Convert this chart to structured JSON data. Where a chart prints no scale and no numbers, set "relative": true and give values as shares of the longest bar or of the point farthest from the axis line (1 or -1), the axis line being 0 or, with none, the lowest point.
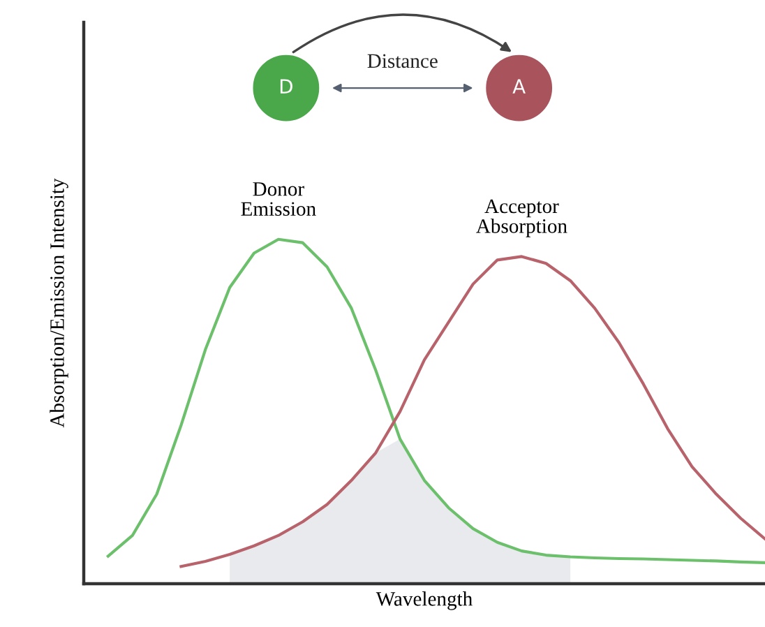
{
  "chart_data": {
    "type": "line",
    "relative": true,
    "tick_labels": false,
    "legend": false,
    "marker": "none",
    "line_style": "solid",
    "xlabel": "Wavelength",
    "ylabel": "Absorption/Emission Intensity",
    "categories": [
      null,
      null,
      null,
      null,
      null,
      null,
      null,
      null,
      null,
      null,
      null,
      null,
      null,
      null,
      null,
      null,
      null,
      null,
      null,
      null,
      null,
      null,
      null,
      null,
      null,
      null,
      null,
      null,
      null
    ],
    "series": [
      {
        "type": "area",
        "color": "#e8eaed",
        "values": [
          null,
          null,
          null,
          null,
          null,
          null,
          0.085,
          0.11,
          0.14,
          0.18,
          0.23,
          0.3,
          0.38,
          0.42,
          0.3,
          0.22,
          0.16,
          0.12,
          0.095,
          0.083,
          0.078,
          null,
          null,
          null,
          null,
          null,
          null,
          null,
          null
        ]
      },
      {
        "name": "Donor\nEmission",
        "color": "#6cc06c",
        "values": [
          null,
          0.08,
          0.14,
          0.26,
          0.46,
          0.68,
          0.86,
          0.96,
          1.0,
          0.99,
          0.92,
          0.8,
          0.62,
          0.42,
          0.3,
          0.22,
          0.16,
          0.12,
          0.095,
          0.083,
          0.078,
          0.075,
          0.073,
          0.072,
          0.07,
          0.068,
          0.066,
          0.063,
          0.061
        ]
      },
      {
        "name": "Acceptor\nAbsorption",
        "color": "#b8636b",
        "values": [
          null,
          null,
          null,
          null,
          0.05,
          0.065,
          0.085,
          0.11,
          0.14,
          0.18,
          0.23,
          0.3,
          0.38,
          0.5,
          0.65,
          0.76,
          0.87,
          0.94,
          0.95,
          0.93,
          0.88,
          0.8,
          0.7,
          0.58,
          0.45,
          0.34,
          0.26,
          0.19,
          0.13
        ]
      }
    ],
    "annotations": [
      "D",
      "Distance",
      "A"
    ]
  }
}
